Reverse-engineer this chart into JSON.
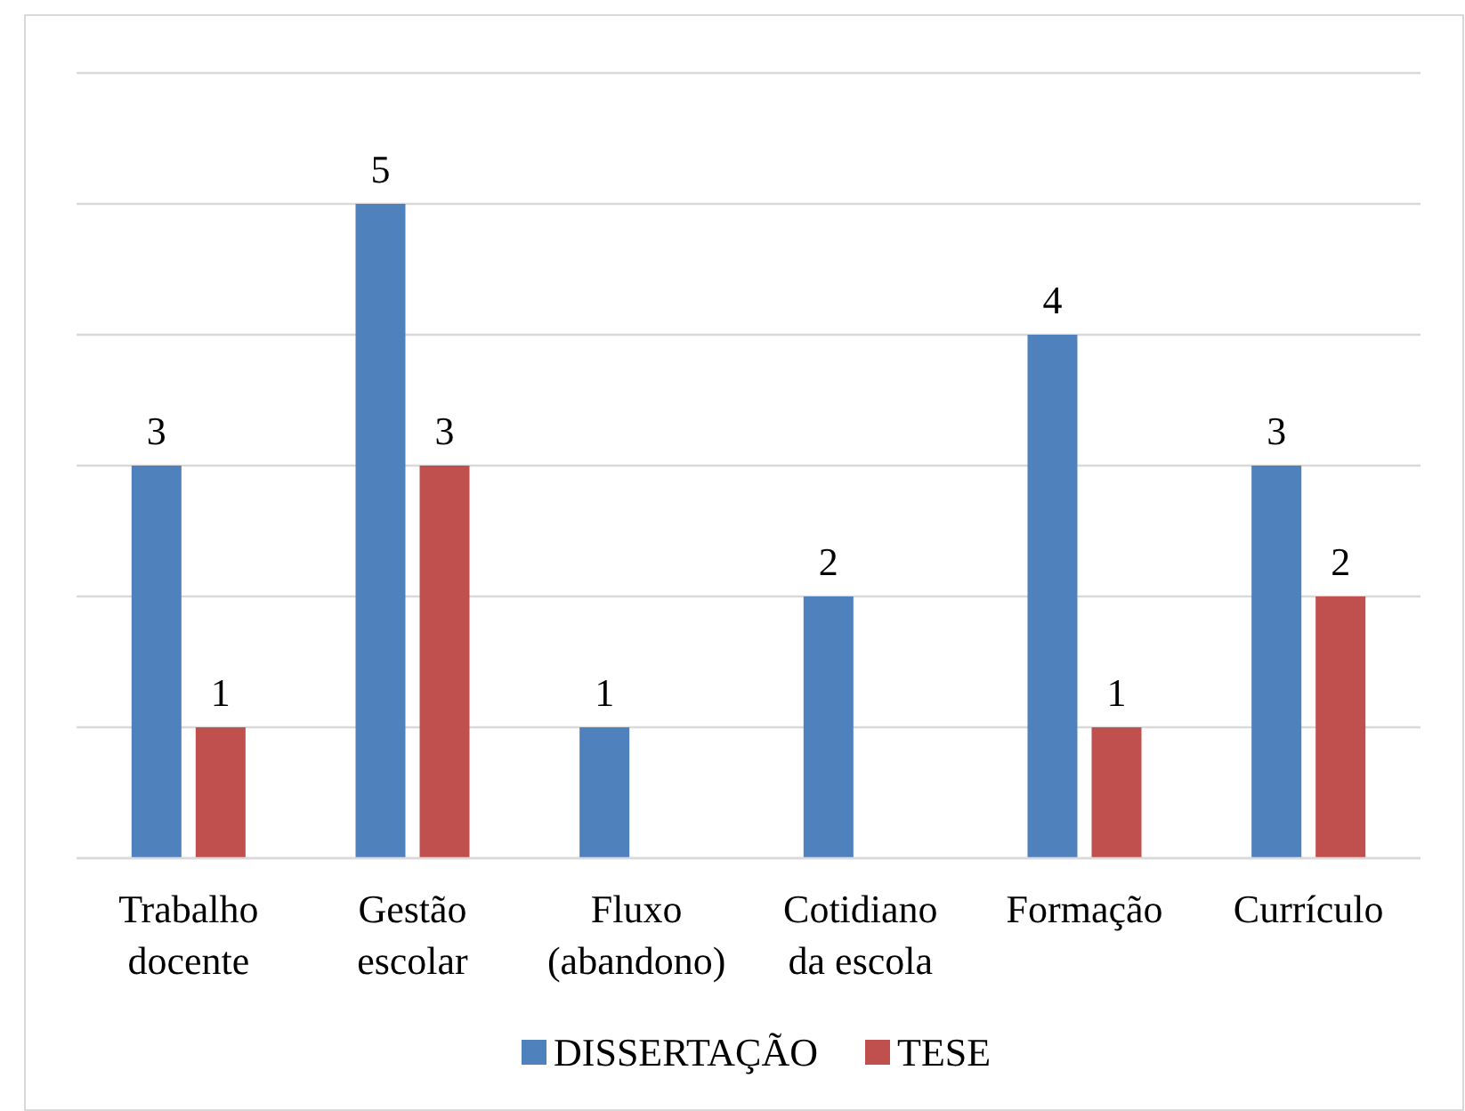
{
  "chart_data": {
    "type": "bar",
    "categories": [
      "Trabalho docente",
      "Gestão escolar",
      "Fluxo (abandono)",
      "Cotidiano da escola",
      "Formação",
      "Currículo"
    ],
    "series": [
      {
        "name": "DISSERTAÇÃO",
        "color": "#4f81bd",
        "values": [
          3,
          5,
          1,
          2,
          4,
          3
        ]
      },
      {
        "name": "TESE",
        "color": "#c0504d",
        "values": [
          1,
          3,
          null,
          null,
          1,
          2
        ]
      }
    ],
    "ylim": [
      0,
      6
    ],
    "yticks": [
      {
        "value": 0,
        "label": null
      },
      {
        "value": 1,
        "label": null
      },
      {
        "value": 2,
        "label": null
      },
      {
        "value": 3,
        "label": null
      },
      {
        "value": 4,
        "label": null
      },
      {
        "value": 5,
        "label": null
      },
      {
        "value": 6,
        "label": null
      }
    ],
    "tick_labels": "x",
    "grid": "y",
    "data_labels": true,
    "legend": "bottom"
  }
}
